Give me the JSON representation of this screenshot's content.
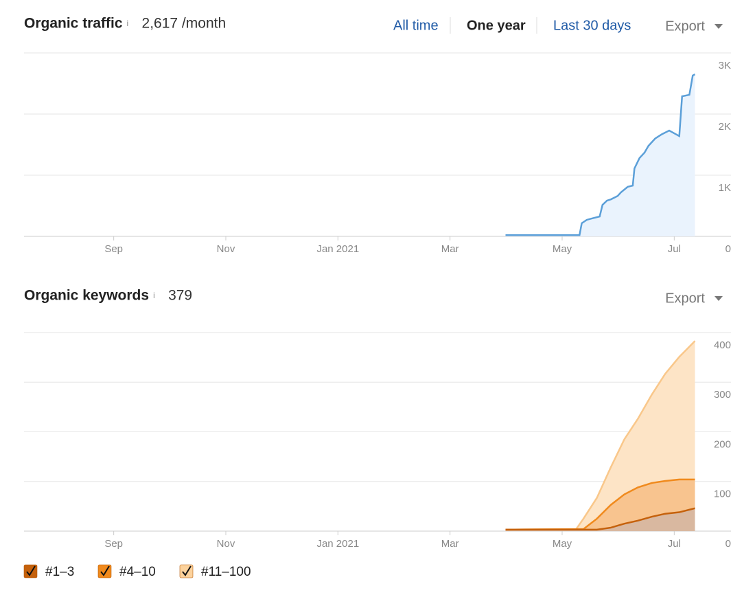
{
  "chart_data": [
    {
      "type": "line",
      "title": "Organic traffic",
      "info": "i",
      "summary": "2,617 /month",
      "x": [
        8.59,
        9.91,
        9.95,
        10.04,
        10.12,
        10.27,
        10.32,
        10.4,
        10.47,
        10.59,
        10.65,
        10.77,
        10.86,
        10.89,
        10.98,
        11.07,
        11.14,
        11.26,
        11.38,
        11.51,
        11.57,
        11.69,
        11.74,
        11.87,
        11.93,
        11.97
      ],
      "series": [
        {
          "name": "Organic traffic",
          "color": "#5b9fd8",
          "fill": "#eaf3fd",
          "values": [
            20,
            20,
            215,
            270,
            290,
            325,
            515,
            585,
            605,
            660,
            720,
            810,
            830,
            1110,
            1280,
            1370,
            1480,
            1600,
            1670,
            1730,
            1700,
            1640,
            2290,
            2315,
            2630,
            2650
          ]
        }
      ],
      "xlim": [
        0,
        12
      ],
      "xticks": [
        {
          "value": 1.6,
          "label": "Sep"
        },
        {
          "value": 3.6,
          "label": "Nov"
        },
        {
          "value": 5.6,
          "label": "Jan 2021"
        },
        {
          "value": 7.6,
          "label": "Mar"
        },
        {
          "value": 9.6,
          "label": "May"
        },
        {
          "value": 11.6,
          "label": "Jul"
        }
      ],
      "ylim": [
        0,
        3000
      ],
      "yticks": [
        0,
        {
          "value": 1000,
          "label": "1K"
        },
        {
          "value": 2000,
          "label": "2K"
        },
        {
          "value": 3000,
          "label": "3K"
        }
      ],
      "grid": true,
      "export": "Export",
      "ranges": [
        "All time",
        "One year",
        "Last 30 days"
      ],
      "active_range": 1
    },
    {
      "type": "area",
      "stacked": true,
      "title": "Organic keywords",
      "info": "i",
      "summary": "379",
      "x": [
        8.59,
        9.85,
        9.98,
        10.22,
        10.47,
        10.71,
        10.95,
        11.2,
        11.44,
        11.69,
        11.97
      ],
      "series": [
        {
          "name": "#1–3",
          "color": "#c5610c",
          "fill": "#d9b8a0",
          "values": [
            3,
            3,
            3,
            3,
            7,
            15,
            21,
            29,
            35,
            38,
            46
          ]
        },
        {
          "name": "#4–10",
          "color": "#f08a1d",
          "fill": "#f8c48f",
          "values": [
            0,
            1,
            1,
            22,
            46,
            59,
            67,
            68,
            66,
            66,
            58
          ]
        },
        {
          "name": "#11–100",
          "color": "#f9c78a",
          "fill": "#fde4c6",
          "values": [
            0,
            0,
            21,
            42,
            76,
            111,
            138,
            178,
            216,
            247,
            279
          ]
        }
      ],
      "xlim": [
        0,
        12
      ],
      "xticks": [
        {
          "value": 1.6,
          "label": "Sep"
        },
        {
          "value": 3.6,
          "label": "Nov"
        },
        {
          "value": 5.6,
          "label": "Jan 2021"
        },
        {
          "value": 7.6,
          "label": "Mar"
        },
        {
          "value": 9.6,
          "label": "May"
        },
        {
          "value": 11.6,
          "label": "Jul"
        }
      ],
      "ylim": [
        0,
        400
      ],
      "yticks": [
        0,
        100,
        200,
        300,
        400
      ],
      "grid": true,
      "export": "Export"
    }
  ]
}
